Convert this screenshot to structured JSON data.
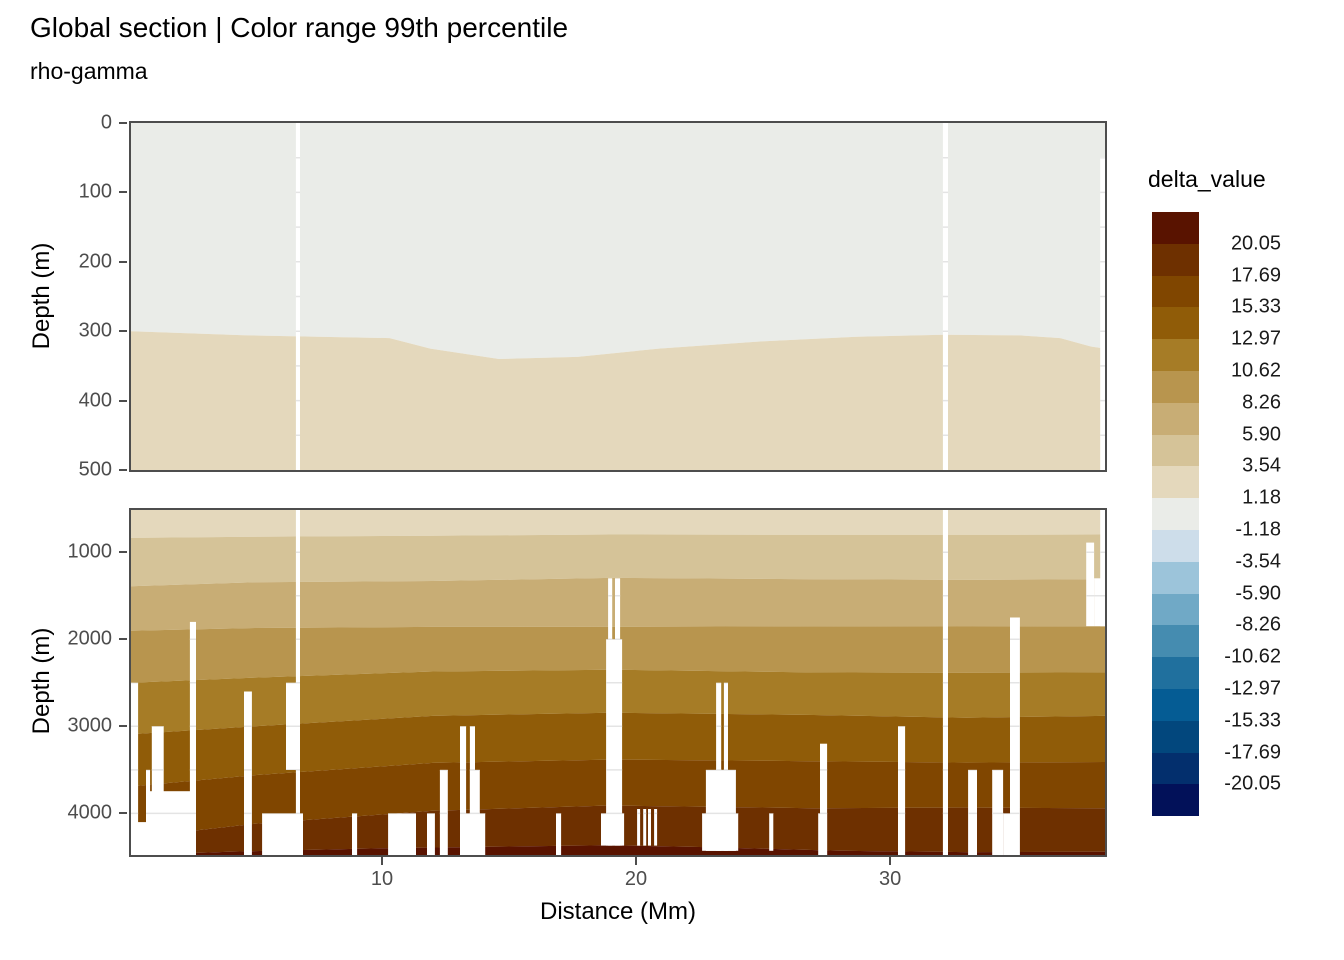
{
  "title": "Global section | Color range 99th percentile",
  "subtitle": "rho-gamma",
  "axes": {
    "x": {
      "title": "Distance (Mm)",
      "ticks": [
        10,
        20,
        30
      ],
      "range_Mm": [
        0.12,
        38.46
      ]
    },
    "y_top": {
      "title": "Depth (m)",
      "ticks": [
        0,
        100,
        200,
        300,
        400,
        500
      ],
      "range_m": [
        0,
        500
      ]
    },
    "y_bottom": {
      "title": "Depth (m)",
      "ticks": [
        1000,
        2000,
        3000,
        4000
      ],
      "range_m": [
        515,
        4478
      ]
    }
  },
  "legend": {
    "title": "delta_value",
    "labels": [
      "20.05",
      "17.69",
      "15.33",
      "12.97",
      "10.62",
      "8.26",
      "5.90",
      "3.54",
      "1.18",
      "-1.18",
      "-3.54",
      "-5.90",
      "-8.26",
      "-10.62",
      "-12.97",
      "-15.33",
      "-17.69",
      "-20.05"
    ],
    "colors": [
      "#591300",
      "#6e3000",
      "#804600",
      "#905c08",
      "#a67c26",
      "#b8954e",
      "#c8ad75",
      "#d5c398",
      "#e4d8bc",
      "#eaece8",
      "#cdddea",
      "#9cc4da",
      "#70a9c6",
      "#458cb0",
      "#20709e",
      "#055c94",
      "#02477d",
      "#032f6d",
      "#021159"
    ]
  },
  "chart_data": {
    "type": "heatmap",
    "title": "Global section | Color range 99th percentile",
    "subtitle": "rho-gamma",
    "xlabel": "Distance (Mm)",
    "ylabel": "Depth (m)",
    "x_range_Mm": [
      0.12,
      38.46
    ],
    "gridline_color": "#e4e4e4",
    "gap_color": "#ffffff",
    "panels": [
      {
        "name": "upper",
        "depth_range": [
          0,
          500
        ],
        "band_values": [
          "-1.18 to 1.18",
          "1.18 to 3.54"
        ],
        "band_colors": [
          "#eaece8",
          "#e4d8bc"
        ],
        "boundaries": [
          [
            [
              0.12,
              300
            ],
            [
              4.7,
              306
            ],
            [
              10.3,
              310
            ],
            [
              11.9,
              325
            ],
            [
              14.6,
              340
            ],
            [
              17.7,
              337
            ],
            [
              20.9,
              325
            ],
            [
              24.8,
              315
            ],
            [
              28.7,
              308
            ],
            [
              32.1,
              305
            ],
            [
              35.1,
              306
            ],
            [
              36.7,
              310
            ],
            [
              37.9,
              322
            ],
            [
              38.46,
              325
            ]
          ]
        ],
        "gaps": [
          [
            6.61,
            0.16,
            0,
            500
          ],
          [
            32.08,
            0.2,
            0,
            500
          ],
          [
            38.27,
            0.19,
            50,
            500
          ]
        ],
        "gridlines_m": [
          50,
          100,
          150,
          200,
          250,
          300,
          350,
          400,
          450
        ]
      },
      {
        "name": "lower",
        "depth_range": [
          515,
          4478
        ],
        "band_values": [
          "1.18 to 3.54",
          "3.54 to 5.90",
          "5.90 to 8.26",
          "8.26 to 10.62",
          "10.62 to 12.97",
          "12.97 to 15.33",
          "15.33 to 17.69",
          "17.69 to 20.05",
          "above 20.05"
        ],
        "band_colors": [
          "#e4d8bc",
          "#d5c398",
          "#c8ad75",
          "#b8954e",
          "#a67c26",
          "#905c08",
          "#804600",
          "#6e3000",
          "#591300"
        ],
        "boundaries": [
          [
            [
              0.12,
              835
            ],
            [
              5,
              822
            ],
            [
              12,
              810
            ],
            [
              19,
              797
            ],
            [
              27,
              800
            ],
            [
              33,
              800
            ],
            [
              38.46,
              797
            ]
          ],
          [
            [
              0.12,
              1390
            ],
            [
              5,
              1345
            ],
            [
              12,
              1330
            ],
            [
              19,
              1295
            ],
            [
              27,
              1310
            ],
            [
              33,
              1318
            ],
            [
              38.46,
              1310
            ]
          ],
          [
            [
              0.12,
              1903
            ],
            [
              5,
              1870
            ],
            [
              12,
              1858
            ],
            [
              19,
              1857
            ],
            [
              27,
              1850
            ],
            [
              33,
              1853
            ],
            [
              38.46,
              1850
            ]
          ],
          [
            [
              0.12,
              2500
            ],
            [
              5,
              2440
            ],
            [
              12,
              2370
            ],
            [
              19,
              2350
            ],
            [
              27,
              2380
            ],
            [
              33,
              2385
            ],
            [
              38.46,
              2380
            ]
          ],
          [
            [
              0.12,
              3090
            ],
            [
              5,
              3000
            ],
            [
              12,
              2880
            ],
            [
              19,
              2843
            ],
            [
              27,
              2870
            ],
            [
              33,
              2901
            ],
            [
              38.46,
              2880
            ]
          ],
          [
            [
              0.12,
              3690
            ],
            [
              5,
              3560
            ],
            [
              12,
              3420
            ],
            [
              19,
              3382
            ],
            [
              27,
              3400
            ],
            [
              33,
              3417
            ],
            [
              38.46,
              3410
            ]
          ],
          [
            [
              0.12,
              4280
            ],
            [
              5,
              4120
            ],
            [
              12,
              3970
            ],
            [
              19,
              3909
            ],
            [
              27,
              3940
            ],
            [
              33,
              3933
            ],
            [
              38.46,
              3940
            ]
          ],
          [
            [
              0.12,
              4480
            ],
            [
              4,
              4440
            ],
            [
              10,
              4400
            ],
            [
              19,
              4365
            ],
            [
              23,
              4390
            ],
            [
              28,
              4430
            ],
            [
              33,
              4445
            ],
            [
              38.46,
              4440
            ]
          ]
        ],
        "gaps": [
          [
            0.12,
            0.28,
            2500,
            4478
          ],
          [
            0.39,
            0.39,
            4100,
            4478
          ],
          [
            0.71,
            0.16,
            3500,
            4478
          ],
          [
            0.94,
            0.47,
            3000,
            4478
          ],
          [
            0.79,
            1.81,
            3745,
            4478
          ],
          [
            2.44,
            0.24,
            1800,
            4478
          ],
          [
            4.57,
            0.31,
            2600,
            4478
          ],
          [
            5.28,
            1.61,
            4000,
            4478
          ],
          [
            6.22,
            0.43,
            2500,
            3500
          ],
          [
            6.61,
            0.16,
            515,
            4478
          ],
          [
            8.82,
            0.2,
            4000,
            4478
          ],
          [
            10.24,
            1.1,
            4000,
            4478
          ],
          [
            11.77,
            0.31,
            4000,
            4478
          ],
          [
            12.28,
            0.31,
            3500,
            4478
          ],
          [
            13.07,
            0.24,
            3000,
            4478
          ],
          [
            13.46,
            0.2,
            3000,
            4478
          ],
          [
            13.46,
            0.39,
            3500,
            4478
          ],
          [
            13.27,
            0.79,
            4000,
            4478
          ],
          [
            16.85,
            0.2,
            4000,
            4478
          ],
          [
            18.9,
            0.16,
            1300,
            4370
          ],
          [
            19.17,
            0.2,
            1300,
            4370
          ],
          [
            18.82,
            0.63,
            2000,
            4370
          ],
          [
            18.62,
            0.91,
            4000,
            4370
          ],
          [
            20.04,
            0.12,
            3950,
            4370
          ],
          [
            20.28,
            0.12,
            3950,
            4370
          ],
          [
            20.47,
            0.12,
            3950,
            4370
          ],
          [
            20.71,
            0.12,
            3950,
            4370
          ],
          [
            23.15,
            0.2,
            2500,
            4430
          ],
          [
            23.46,
            0.16,
            2500,
            4430
          ],
          [
            22.75,
            1.18,
            3500,
            4430
          ],
          [
            22.6,
            1.42,
            4000,
            4430
          ],
          [
            25.24,
            0.16,
            4000,
            4430
          ],
          [
            27.24,
            0.28,
            3200,
            4478
          ],
          [
            27.17,
            0.35,
            4000,
            4478
          ],
          [
            30.31,
            0.28,
            3000,
            4478
          ],
          [
            32.08,
            0.2,
            515,
            4478
          ],
          [
            33.07,
            0.35,
            3500,
            4478
          ],
          [
            34.02,
            0.43,
            3500,
            4478
          ],
          [
            34.72,
            0.39,
            1750,
            4478
          ],
          [
            34.45,
            0.51,
            4000,
            4478
          ],
          [
            37.72,
            0.31,
            890,
            1850
          ],
          [
            38.03,
            0.43,
            1300,
            1850
          ],
          [
            38.27,
            0.19,
            515,
            1850
          ]
        ],
        "gridlines_m": [
          1000,
          1500,
          2000,
          2500,
          3000,
          3500,
          4000
        ]
      }
    ]
  }
}
